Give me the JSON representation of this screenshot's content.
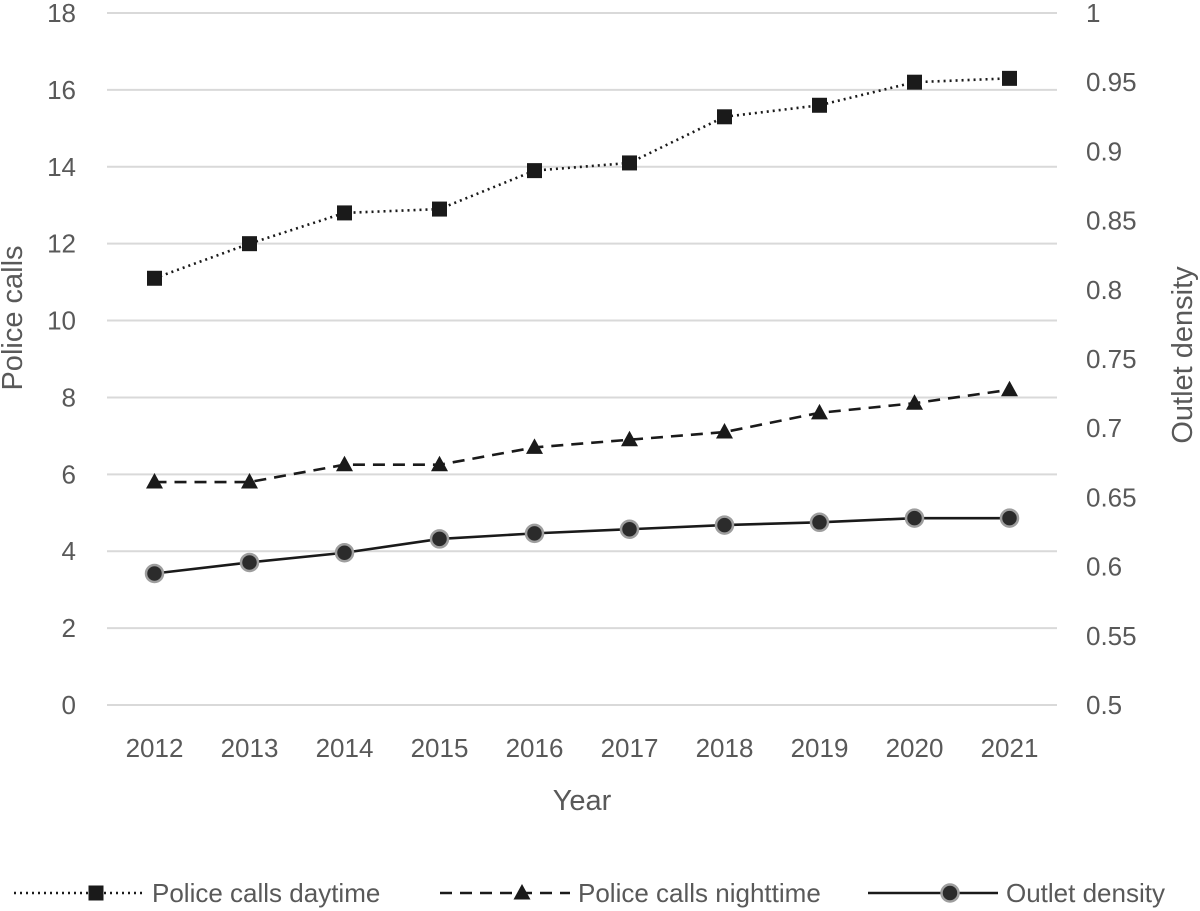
{
  "chart_data": {
    "type": "line",
    "categories": [
      "2012",
      "2013",
      "2014",
      "2015",
      "2016",
      "2017",
      "2018",
      "2019",
      "2020",
      "2021"
    ],
    "xlabel": "Year",
    "ylabel": "Police calls",
    "y2label": "Outlet density",
    "ylim": [
      0,
      18
    ],
    "y2lim": [
      0.5,
      1
    ],
    "yticks": [
      "0",
      "2",
      "4",
      "6",
      "8",
      "10",
      "12",
      "14",
      "16",
      "18"
    ],
    "y2ticks": [
      "0.5",
      "0.55",
      "0.6",
      "0.65",
      "0.7",
      "0.75",
      "0.8",
      "0.85",
      "0.9",
      "0.95",
      "1"
    ],
    "grid": true,
    "legend_position": "bottom",
    "series": [
      {
        "name": "Police calls daytime",
        "axis": "left",
        "line_style": "dotted",
        "marker": "square",
        "color": "#1a1a1a",
        "values": [
          11.1,
          12.0,
          12.8,
          12.9,
          13.9,
          14.1,
          15.3,
          15.6,
          16.2,
          16.3
        ]
      },
      {
        "name": "Police calls nighttime",
        "axis": "left",
        "line_style": "dashed",
        "marker": "triangle",
        "color": "#1a1a1a",
        "values": [
          5.8,
          5.8,
          6.25,
          6.25,
          6.7,
          6.9,
          7.1,
          7.6,
          7.85,
          8.2
        ]
      },
      {
        "name": "Outlet density",
        "axis": "right",
        "line_style": "solid",
        "marker": "circle",
        "color": "#1a1a1a",
        "values": [
          0.595,
          0.603,
          0.61,
          0.62,
          0.624,
          0.627,
          0.63,
          0.632,
          0.635,
          0.635
        ]
      }
    ]
  }
}
